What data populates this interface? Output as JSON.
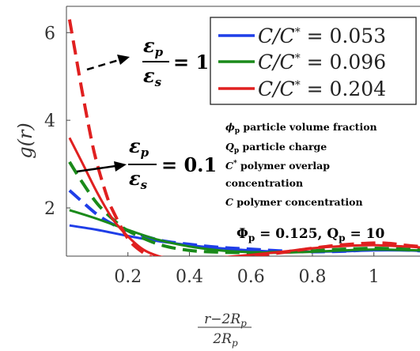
{
  "chart_data": {
    "type": "line",
    "title": "",
    "ylabel": "g(r)",
    "xlabel": "(r−2R_p)/(2R_p)",
    "xlabel_numerator": "r−2R",
    "xlabel_denominator": "2R",
    "xlabel_sub": "p",
    "xlim": [
      0,
      1.15
    ],
    "ylim": [
      0.9,
      6.6
    ],
    "xticks": [
      "0.2",
      "0.4",
      "0.6",
      "0.8",
      "1"
    ],
    "yticks": [
      "2",
      "4",
      "6"
    ],
    "legend_position": "top-right",
    "legend": [
      {
        "label": "C/C* = 0.053",
        "lhs": "C/C",
        "star": "*",
        "rhs": " = 0.053",
        "color": "#1f3ee8"
      },
      {
        "label": "C/C* = 0.096",
        "lhs": "C/C",
        "star": "*",
        "rhs": " = 0.096",
        "color": "#1a8a1a"
      },
      {
        "label": "C/C* = 0.204",
        "lhs": "C/C",
        "star": "*",
        "rhs": " = 0.204",
        "color": "#e02020"
      }
    ],
    "series": [
      {
        "name": "C/C* = 0.053, εp/εs = 1",
        "color": "#1f3ee8",
        "dash": true,
        "x": [
          0.01,
          0.05,
          0.1,
          0.15,
          0.2,
          0.3,
          0.4,
          0.5,
          0.6,
          0.7,
          0.8,
          0.9,
          1.0,
          1.1,
          1.15
        ],
        "y": [
          2.4,
          2.15,
          1.85,
          1.63,
          1.48,
          1.27,
          1.17,
          1.1,
          1.06,
          1.02,
          1.0,
          1.01,
          1.05,
          1.04,
          1.02
        ]
      },
      {
        "name": "C/C* = 0.053, εp/εs = 0.1",
        "color": "#1f3ee8",
        "dash": false,
        "x": [
          0.01,
          0.1,
          0.2,
          0.3,
          0.4,
          0.5,
          0.6,
          0.7,
          0.8,
          0.9,
          1.0,
          1.1,
          1.15
        ],
        "y": [
          1.6,
          1.5,
          1.36,
          1.24,
          1.15,
          1.08,
          1.03,
          1.0,
          1.0,
          1.01,
          1.03,
          1.03,
          1.02
        ]
      },
      {
        "name": "C/C* = 0.096, εp/εs = 1",
        "color": "#1a8a1a",
        "dash": true,
        "x": [
          0.01,
          0.05,
          0.1,
          0.15,
          0.2,
          0.3,
          0.4,
          0.5,
          0.6,
          0.7,
          0.8,
          0.9,
          1.0,
          1.1,
          1.15
        ],
        "y": [
          3.05,
          2.6,
          2.1,
          1.75,
          1.48,
          1.17,
          1.03,
          0.99,
          0.98,
          0.99,
          1.02,
          1.06,
          1.08,
          1.06,
          1.04
        ]
      },
      {
        "name": "C/C* = 0.096, εp/εs = 0.1",
        "color": "#1a8a1a",
        "dash": false,
        "x": [
          0.01,
          0.1,
          0.2,
          0.3,
          0.4,
          0.5,
          0.6,
          0.7,
          0.8,
          0.9,
          1.0,
          1.1,
          1.15
        ],
        "y": [
          1.95,
          1.75,
          1.5,
          1.27,
          1.12,
          1.03,
          0.99,
          0.98,
          1.0,
          1.03,
          1.05,
          1.04,
          1.03
        ]
      },
      {
        "name": "C/C* = 0.204, εp/εs = 1",
        "color": "#e02020",
        "dash": true,
        "x": [
          0.01,
          0.03,
          0.05,
          0.08,
          0.1,
          0.13,
          0.15,
          0.2,
          0.25,
          0.3,
          0.35,
          0.4,
          0.5,
          0.6,
          0.7,
          0.8,
          0.9,
          1.0,
          1.05,
          1.1,
          1.15
        ],
        "y": [
          6.3,
          5.5,
          4.7,
          3.6,
          3.0,
          2.3,
          1.95,
          1.3,
          0.98,
          0.82,
          0.78,
          0.78,
          0.83,
          0.9,
          0.98,
          1.08,
          1.16,
          1.2,
          1.19,
          1.15,
          1.12
        ]
      },
      {
        "name": "C/C* = 0.204, εp/εs = 0.1",
        "color": "#e02020",
        "dash": false,
        "x": [
          0.01,
          0.05,
          0.1,
          0.15,
          0.2,
          0.25,
          0.3,
          0.35,
          0.4,
          0.5,
          0.6,
          0.7,
          0.8,
          0.9,
          1.0,
          1.1,
          1.15
        ],
        "y": [
          3.6,
          3.05,
          2.35,
          1.75,
          1.35,
          1.05,
          0.9,
          0.84,
          0.83,
          0.87,
          0.93,
          1.0,
          1.08,
          1.13,
          1.15,
          1.12,
          1.1
        ]
      }
    ],
    "annotations": {
      "eps_top": {
        "num": "ε",
        "num_sub": "p",
        "den": "ε",
        "den_sub": "s",
        "rhs": "= 1"
      },
      "eps_bottom": {
        "num": "ε",
        "num_sub": "p",
        "den": "ε",
        "den_sub": "s",
        "rhs": "= 0.1"
      },
      "notes": [
        {
          "sym": "ϕ",
          "sub": "p",
          "text": " particle volume fraction"
        },
        {
          "sym": "Q",
          "sub": "p",
          "text": " particle charge"
        },
        {
          "sym": "C",
          "sup": "*",
          "text": " polymer overlap"
        },
        {
          "sym": "",
          "text": "concentration"
        },
        {
          "sym": "C",
          "text": " polymer concentration"
        }
      ],
      "params": "Φp = 0.125, Qp = 10",
      "params_parts": {
        "phi": "Φ",
        "phi_sub": "p",
        "phi_val": " = 0.125, ",
        "q": "Q",
        "q_sub": "p",
        "q_val": " = 10"
      }
    }
  }
}
